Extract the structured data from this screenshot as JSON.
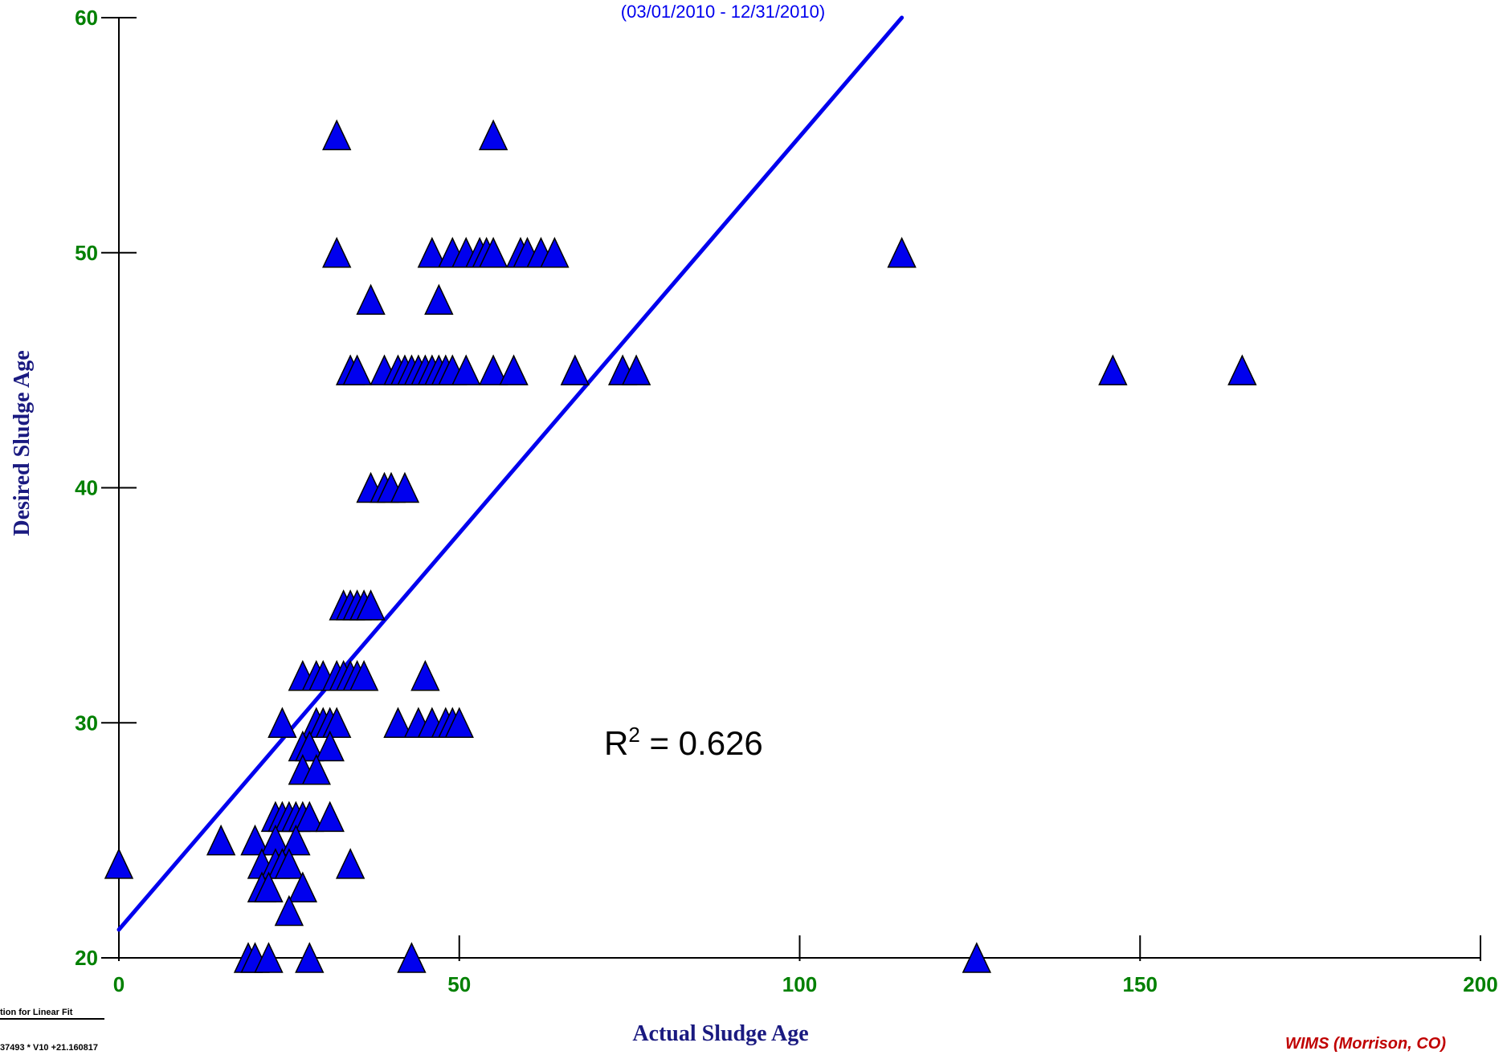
{
  "chart_data": {
    "type": "scatter",
    "subtitle": "(03/01/2010 - 12/31/2010)",
    "xlabel": "Actual Sludge Age",
    "ylabel": "Desired Sludge Age",
    "xlim": [
      0,
      200
    ],
    "ylim": [
      20,
      60
    ],
    "xticks": [
      "0",
      "50",
      "100",
      "150",
      "200"
    ],
    "yticks": [
      "20",
      "30",
      "40",
      "50",
      "60"
    ],
    "marker": "triangle",
    "marker_color": "#0000ee",
    "line_color": "#0000ee",
    "fit_line": {
      "x": [
        0,
        115
      ],
      "y": [
        21.2,
        60
      ]
    },
    "annotation": {
      "text": "R",
      "sup": "2",
      "rest": " = 0.626"
    },
    "footer_lines": [
      "tion for Linear Fit",
      "37493 * V10 +21.160817"
    ],
    "credit": "WIMS (Morrison, CO)",
    "points": [
      {
        "x": 0,
        "y": 24
      },
      {
        "x": 32,
        "y": 55
      },
      {
        "x": 55,
        "y": 55
      },
      {
        "x": 32,
        "y": 50
      },
      {
        "x": 46,
        "y": 50
      },
      {
        "x": 49,
        "y": 50
      },
      {
        "x": 51,
        "y": 50
      },
      {
        "x": 53,
        "y": 50
      },
      {
        "x": 54,
        "y": 50
      },
      {
        "x": 55,
        "y": 50
      },
      {
        "x": 59,
        "y": 50
      },
      {
        "x": 60,
        "y": 50
      },
      {
        "x": 62,
        "y": 50
      },
      {
        "x": 64,
        "y": 50
      },
      {
        "x": 115,
        "y": 50
      },
      {
        "x": 37,
        "y": 48
      },
      {
        "x": 47,
        "y": 48
      },
      {
        "x": 34,
        "y": 45
      },
      {
        "x": 35,
        "y": 45
      },
      {
        "x": 39,
        "y": 45
      },
      {
        "x": 41,
        "y": 45
      },
      {
        "x": 42,
        "y": 45
      },
      {
        "x": 43,
        "y": 45
      },
      {
        "x": 44,
        "y": 45
      },
      {
        "x": 45,
        "y": 45
      },
      {
        "x": 46,
        "y": 45
      },
      {
        "x": 47,
        "y": 45
      },
      {
        "x": 48,
        "y": 45
      },
      {
        "x": 49,
        "y": 45
      },
      {
        "x": 51,
        "y": 45
      },
      {
        "x": 55,
        "y": 45
      },
      {
        "x": 58,
        "y": 45
      },
      {
        "x": 67,
        "y": 45
      },
      {
        "x": 74,
        "y": 45
      },
      {
        "x": 76,
        "y": 45
      },
      {
        "x": 146,
        "y": 45
      },
      {
        "x": 165,
        "y": 45
      },
      {
        "x": 37,
        "y": 40
      },
      {
        "x": 39,
        "y": 40
      },
      {
        "x": 40,
        "y": 40
      },
      {
        "x": 42,
        "y": 40
      },
      {
        "x": 33,
        "y": 35
      },
      {
        "x": 34,
        "y": 35
      },
      {
        "x": 35,
        "y": 35
      },
      {
        "x": 36,
        "y": 35
      },
      {
        "x": 37,
        "y": 35
      },
      {
        "x": 27,
        "y": 32
      },
      {
        "x": 29,
        "y": 32
      },
      {
        "x": 30,
        "y": 32
      },
      {
        "x": 32,
        "y": 32
      },
      {
        "x": 33,
        "y": 32
      },
      {
        "x": 34,
        "y": 32
      },
      {
        "x": 35,
        "y": 32
      },
      {
        "x": 36,
        "y": 32
      },
      {
        "x": 45,
        "y": 32
      },
      {
        "x": 24,
        "y": 30
      },
      {
        "x": 29,
        "y": 30
      },
      {
        "x": 30,
        "y": 30
      },
      {
        "x": 31,
        "y": 30
      },
      {
        "x": 32,
        "y": 30
      },
      {
        "x": 41,
        "y": 30
      },
      {
        "x": 44,
        "y": 30
      },
      {
        "x": 46,
        "y": 30
      },
      {
        "x": 48,
        "y": 30
      },
      {
        "x": 49,
        "y": 30
      },
      {
        "x": 50,
        "y": 30
      },
      {
        "x": 27,
        "y": 29
      },
      {
        "x": 28,
        "y": 29
      },
      {
        "x": 31,
        "y": 29
      },
      {
        "x": 27,
        "y": 28
      },
      {
        "x": 29,
        "y": 28
      },
      {
        "x": 23,
        "y": 26
      },
      {
        "x": 24,
        "y": 26
      },
      {
        "x": 25,
        "y": 26
      },
      {
        "x": 26,
        "y": 26
      },
      {
        "x": 27,
        "y": 26
      },
      {
        "x": 28,
        "y": 26
      },
      {
        "x": 31,
        "y": 26
      },
      {
        "x": 15,
        "y": 25
      },
      {
        "x": 20,
        "y": 25
      },
      {
        "x": 23,
        "y": 25
      },
      {
        "x": 26,
        "y": 25
      },
      {
        "x": 21,
        "y": 24
      },
      {
        "x": 23,
        "y": 24
      },
      {
        "x": 24,
        "y": 24
      },
      {
        "x": 25,
        "y": 24
      },
      {
        "x": 34,
        "y": 24
      },
      {
        "x": 21,
        "y": 23
      },
      {
        "x": 22,
        "y": 23
      },
      {
        "x": 27,
        "y": 23
      },
      {
        "x": 25,
        "y": 22
      },
      {
        "x": 19,
        "y": 20
      },
      {
        "x": 20,
        "y": 20
      },
      {
        "x": 22,
        "y": 20
      },
      {
        "x": 28,
        "y": 20
      },
      {
        "x": 43,
        "y": 20
      },
      {
        "x": 126,
        "y": 20
      }
    ]
  }
}
